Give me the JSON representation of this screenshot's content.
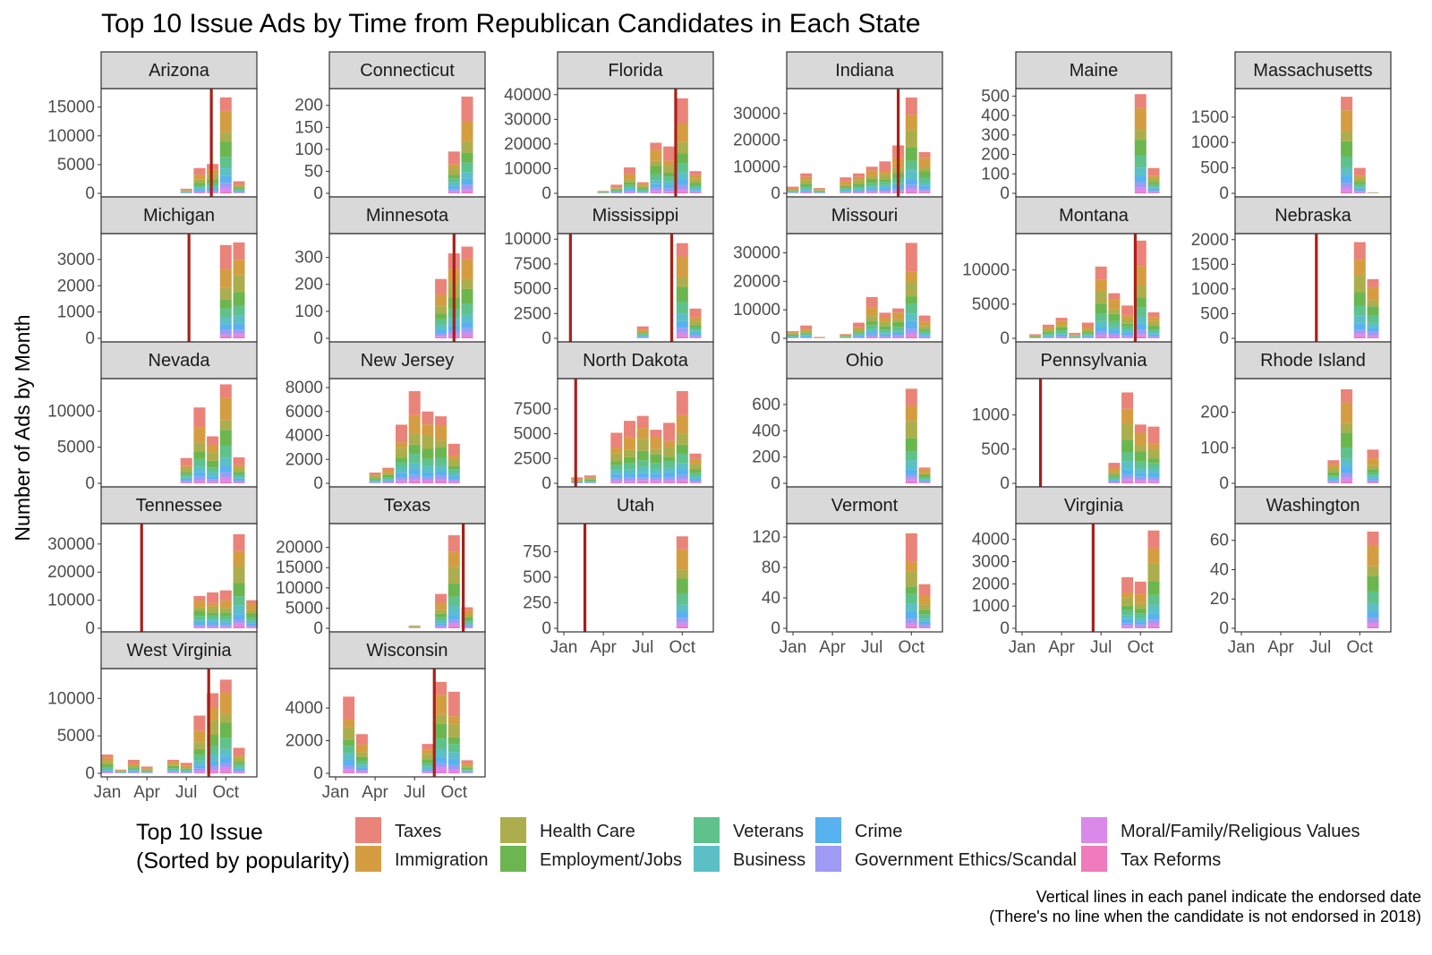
{
  "chart_data": {
    "type": "bar",
    "title": "Top 10 Issue Ads by Time from Republican Candidates in Each State",
    "ylabel": "Number of Ads by Month",
    "xlabel": "",
    "x_ticks": [
      "Jan",
      "Apr",
      "Jul",
      "Oct"
    ],
    "x_tick_months": [
      1,
      4,
      7,
      10
    ],
    "legend": {
      "title_line1": "Top 10 Issue",
      "title_line2": "(Sorted by popularity)",
      "items": [
        {
          "name": "Taxes",
          "color": "#E8756A"
        },
        {
          "name": "Immigration",
          "color": "#D0922E"
        },
        {
          "name": "Health Care",
          "color": "#A3A53A"
        },
        {
          "name": "Employment/Jobs",
          "color": "#5BAE3C"
        },
        {
          "name": "Veterans",
          "color": "#4EBA7E"
        },
        {
          "name": "Business",
          "color": "#4AB8C0"
        },
        {
          "name": "Crime",
          "color": "#46AAEE"
        },
        {
          "name": "Government Ethics/Scandal",
          "color": "#958FF2"
        },
        {
          "name": "Moral/Family/Religious Values",
          "color": "#D77BE9"
        },
        {
          "name": "Tax Reforms",
          "color": "#EE6CB6"
        }
      ]
    },
    "caption_line1": "Vertical lines in each panel indicate the endorsed date",
    "caption_line2": "(There's no line when the candidate is not endorsed in 2018)",
    "panels": [
      {
        "state": "Arizona",
        "yticks": [
          0,
          5000,
          10000,
          15000
        ],
        "ymax": 17600,
        "endorse": 8.9,
        "bars": [
          [
            7,
            800
          ],
          [
            8,
            4400
          ],
          [
            9,
            5100
          ],
          [
            10,
            16700
          ],
          [
            11,
            2100
          ]
        ]
      },
      {
        "state": "Connecticut",
        "yticks": [
          0,
          50,
          100,
          150,
          200
        ],
        "ymax": 230,
        "endorse": null,
        "bars": [
          [
            10,
            95
          ],
          [
            11,
            220
          ]
        ]
      },
      {
        "state": "Florida",
        "yticks": [
          0,
          10000,
          20000,
          30000,
          40000
        ],
        "ymax": 41000,
        "endorse": 9.5,
        "bars": [
          [
            4,
            1000
          ],
          [
            5,
            3500
          ],
          [
            6,
            10500
          ],
          [
            7,
            4500
          ],
          [
            8,
            20500
          ],
          [
            9,
            19000
          ],
          [
            10,
            38500
          ],
          [
            11,
            9000
          ]
        ]
      },
      {
        "state": "Indiana",
        "yticks": [
          0,
          10000,
          20000,
          30000
        ],
        "ymax": 38000,
        "endorse": 9.0,
        "bars": [
          [
            1,
            2500
          ],
          [
            2,
            7500
          ],
          [
            3,
            2000
          ],
          [
            5,
            6000
          ],
          [
            6,
            7500
          ],
          [
            7,
            10000
          ],
          [
            8,
            12000
          ],
          [
            9,
            18000
          ],
          [
            10,
            36000
          ],
          [
            11,
            15500
          ]
        ]
      },
      {
        "state": "Maine",
        "yticks": [
          0,
          100,
          200,
          300,
          400,
          500
        ],
        "ymax": 520,
        "endorse": null,
        "bars": [
          [
            10,
            510
          ],
          [
            11,
            130
          ]
        ]
      },
      {
        "state": "Massachusetts",
        "yticks": [
          0,
          500,
          1000,
          1500
        ],
        "ymax": 1990,
        "endorse": null,
        "bars": [
          [
            9,
            1900
          ],
          [
            10,
            500
          ],
          [
            11,
            20
          ]
        ]
      },
      {
        "state": "Michigan",
        "yticks": [
          0,
          1000,
          2000,
          3000
        ],
        "ymax": 3850,
        "endorse": 7.2,
        "bars": [
          [
            10,
            3550
          ],
          [
            11,
            3650
          ]
        ]
      },
      {
        "state": "Minnesota",
        "yticks": [
          0,
          100,
          200,
          300
        ],
        "ymax": 375,
        "endorse": 10.0,
        "bars": [
          [
            9,
            220
          ],
          [
            10,
            315
          ],
          [
            11,
            340
          ]
        ]
      },
      {
        "state": "Mississippi",
        "yticks": [
          0,
          2500,
          5000,
          7500,
          10000
        ],
        "ymax": 10200,
        "endorse": [
          1.5,
          9.2
        ],
        "bars": [
          [
            7,
            1200
          ],
          [
            10,
            9600
          ],
          [
            11,
            3000
          ]
        ]
      },
      {
        "state": "Missouri",
        "yticks": [
          0,
          10000,
          20000,
          30000
        ],
        "ymax": 35500,
        "endorse": null,
        "bars": [
          [
            1,
            2500
          ],
          [
            2,
            4500
          ],
          [
            3,
            500
          ],
          [
            5,
            1500
          ],
          [
            6,
            5500
          ],
          [
            7,
            14500
          ],
          [
            8,
            9000
          ],
          [
            9,
            10500
          ],
          [
            10,
            33500
          ],
          [
            11,
            8000
          ]
        ]
      },
      {
        "state": "Montana",
        "yticks": [
          0,
          5000,
          10000
        ],
        "ymax": 14800,
        "endorse": 9.6,
        "bars": [
          [
            2,
            600
          ],
          [
            3,
            2000
          ],
          [
            4,
            3000
          ],
          [
            5,
            800
          ],
          [
            6,
            2300
          ],
          [
            7,
            10500
          ],
          [
            8,
            6600
          ],
          [
            9,
            4800
          ],
          [
            10,
            14300
          ],
          [
            11,
            3800
          ]
        ]
      },
      {
        "state": "Nebraska",
        "yticks": [
          0,
          500,
          1000,
          1500,
          2000
        ],
        "ymax": 2050,
        "endorse": 6.7,
        "bars": [
          [
            10,
            1950
          ],
          [
            11,
            1200
          ]
        ]
      },
      {
        "state": "Nevada",
        "yticks": [
          0,
          5000,
          10000
        ],
        "ymax": 14000,
        "endorse": null,
        "bars": [
          [
            7,
            3500
          ],
          [
            8,
            10500
          ],
          [
            9,
            6500
          ],
          [
            10,
            13700
          ],
          [
            11,
            3600
          ]
        ]
      },
      {
        "state": "New Jersey",
        "yticks": [
          0,
          2000,
          4000,
          6000,
          8000
        ],
        "ymax": 8450,
        "endorse": null,
        "bars": [
          [
            4,
            900
          ],
          [
            5,
            1300
          ],
          [
            6,
            4900
          ],
          [
            7,
            7700
          ],
          [
            8,
            6000
          ],
          [
            9,
            5600
          ],
          [
            10,
            3300
          ]
        ]
      },
      {
        "state": "North Dakota",
        "yticks": [
          0,
          2500,
          5000,
          7500
        ],
        "ymax": 10200,
        "endorse": 1.9,
        "bars": [
          [
            2,
            600
          ],
          [
            3,
            800
          ],
          [
            5,
            5100
          ],
          [
            6,
            6300
          ],
          [
            7,
            6800
          ],
          [
            8,
            5400
          ],
          [
            9,
            6100
          ],
          [
            10,
            9300
          ],
          [
            11,
            3000
          ]
        ]
      },
      {
        "state": "Ohio",
        "yticks": [
          0,
          200,
          400,
          600
        ],
        "ymax": 770,
        "endorse": null,
        "bars": [
          [
            10,
            720
          ],
          [
            11,
            120
          ]
        ]
      },
      {
        "state": "Pennsylvania",
        "yticks": [
          0,
          500,
          1000
        ],
        "ymax": 1480,
        "endorse": 2.4,
        "bars": [
          [
            8,
            300
          ],
          [
            9,
            1330
          ],
          [
            10,
            860
          ],
          [
            11,
            830
          ]
        ]
      },
      {
        "state": "Rhode Island",
        "yticks": [
          0,
          100,
          200
        ],
        "ymax": 285,
        "endorse": null,
        "bars": [
          [
            8,
            65
          ],
          [
            9,
            265
          ],
          [
            11,
            95
          ]
        ]
      },
      {
        "state": "Tennessee",
        "yticks": [
          0,
          10000,
          20000,
          30000
        ],
        "ymax": 36000,
        "endorse": 3.6,
        "bars": [
          [
            8,
            11500
          ],
          [
            9,
            12800
          ],
          [
            10,
            13500
          ],
          [
            11,
            33500
          ],
          [
            12,
            10000
          ]
        ]
      },
      {
        "state": "Texas",
        "yticks": [
          0,
          5000,
          10000,
          15000,
          20000
        ],
        "ymax": 25000,
        "endorse": 10.7,
        "bars": [
          [
            7,
            700
          ],
          [
            9,
            8500
          ],
          [
            10,
            23000
          ],
          [
            11,
            5200
          ]
        ]
      },
      {
        "state": "Utah",
        "yticks": [
          0,
          250,
          500,
          750
        ],
        "ymax": 990,
        "endorse": 2.6,
        "bars": [
          [
            10,
            900
          ]
        ]
      },
      {
        "state": "Vermont",
        "yticks": [
          0,
          40,
          80,
          120
        ],
        "ymax": 133,
        "endorse": null,
        "bars": [
          [
            10,
            125
          ],
          [
            11,
            58
          ]
        ]
      },
      {
        "state": "Virginia",
        "yticks": [
          0,
          1000,
          2000,
          3000,
          4000
        ],
        "ymax": 4550,
        "endorse": 6.4,
        "bars": [
          [
            9,
            2300
          ],
          [
            10,
            2100
          ],
          [
            11,
            4400
          ]
        ]
      },
      {
        "state": "Washington",
        "yticks": [
          0,
          20,
          40,
          60
        ],
        "ymax": 69,
        "endorse": null,
        "bars": [
          [
            11,
            66
          ]
        ]
      },
      {
        "state": "West Virginia",
        "yticks": [
          0,
          5000,
          10000
        ],
        "ymax": 13500,
        "endorse": 8.7,
        "bars": [
          [
            1,
            2500
          ],
          [
            2,
            500
          ],
          [
            3,
            1800
          ],
          [
            4,
            900
          ],
          [
            6,
            1800
          ],
          [
            7,
            1400
          ],
          [
            8,
            7700
          ],
          [
            9,
            10700
          ],
          [
            10,
            12500
          ],
          [
            11,
            3400
          ]
        ]
      },
      {
        "state": "Wisconsin",
        "yticks": [
          0,
          2000,
          4000
        ],
        "ymax": 6200,
        "endorse": 8.5,
        "bars": [
          [
            2,
            4700
          ],
          [
            3,
            2400
          ],
          [
            8,
            1800
          ],
          [
            9,
            5600
          ],
          [
            10,
            5000
          ],
          [
            11,
            800
          ]
        ]
      }
    ]
  }
}
